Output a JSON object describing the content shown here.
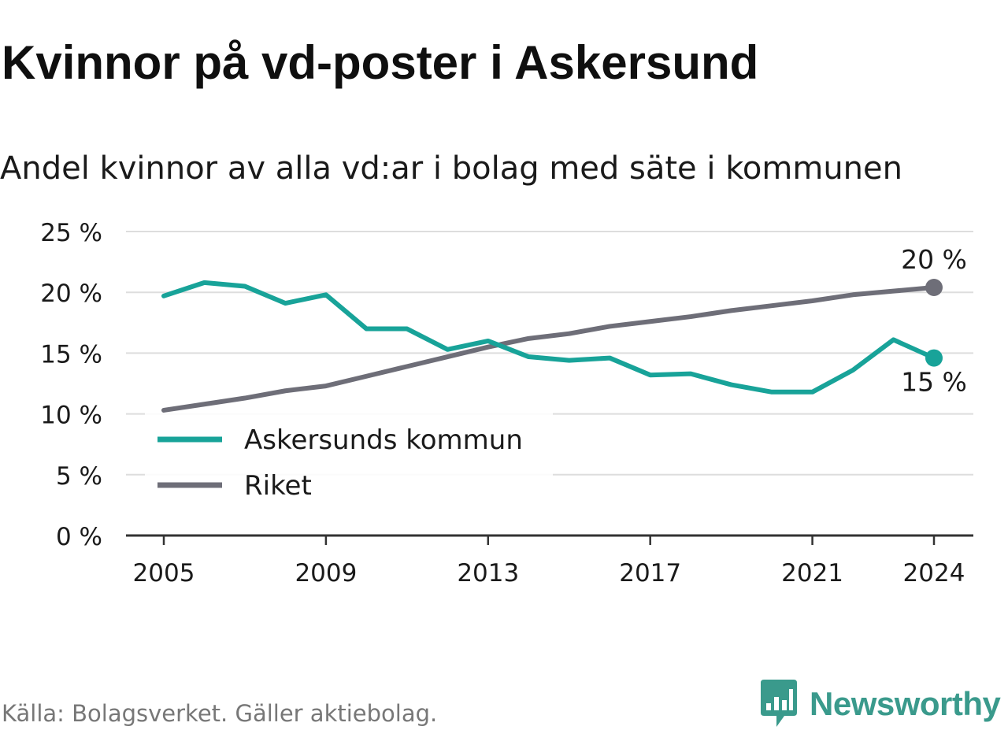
{
  "title": "Kvinnor på vd-poster i Askersund",
  "subtitle": "Andel kvinnor av alla vd:ar i bolag med säte i kommunen",
  "source": "Källa: Bolagsverket. Gäller aktiebolag.",
  "logo": {
    "text": "Newsworthy",
    "icon": "newsworthy-logo-icon",
    "color": "#3a9a8c"
  },
  "chart_data": {
    "type": "line",
    "x": [
      2005,
      2006,
      2007,
      2008,
      2009,
      2010,
      2011,
      2012,
      2013,
      2014,
      2015,
      2016,
      2017,
      2018,
      2019,
      2020,
      2021,
      2022,
      2023,
      2024
    ],
    "xticks": [
      2005,
      2009,
      2013,
      2017,
      2021,
      2024
    ],
    "ylim": [
      0,
      25
    ],
    "yticks": [
      0,
      5,
      10,
      15,
      20,
      25
    ],
    "ytick_labels": [
      "0 %",
      "5 %",
      "10 %",
      "15 %",
      "20 %",
      "25 %"
    ],
    "grid": true,
    "legend_position": "bottom-left",
    "series": [
      {
        "name": "Askersunds kommun",
        "color": "#18a399",
        "values": [
          19.7,
          20.8,
          20.5,
          19.1,
          19.8,
          17.0,
          17.0,
          15.3,
          16.0,
          14.7,
          14.4,
          14.6,
          13.2,
          13.3,
          12.4,
          11.8,
          11.8,
          13.6,
          16.1,
          14.6
        ],
        "end_label": "15 %"
      },
      {
        "name": "Riket",
        "color": "#6e6e78",
        "values": [
          10.3,
          10.8,
          11.3,
          11.9,
          12.3,
          13.1,
          13.9,
          14.7,
          15.5,
          16.2,
          16.6,
          17.2,
          17.6,
          18.0,
          18.5,
          18.9,
          19.3,
          19.8,
          20.1,
          20.4
        ],
        "end_label": "20 %"
      }
    ]
  }
}
